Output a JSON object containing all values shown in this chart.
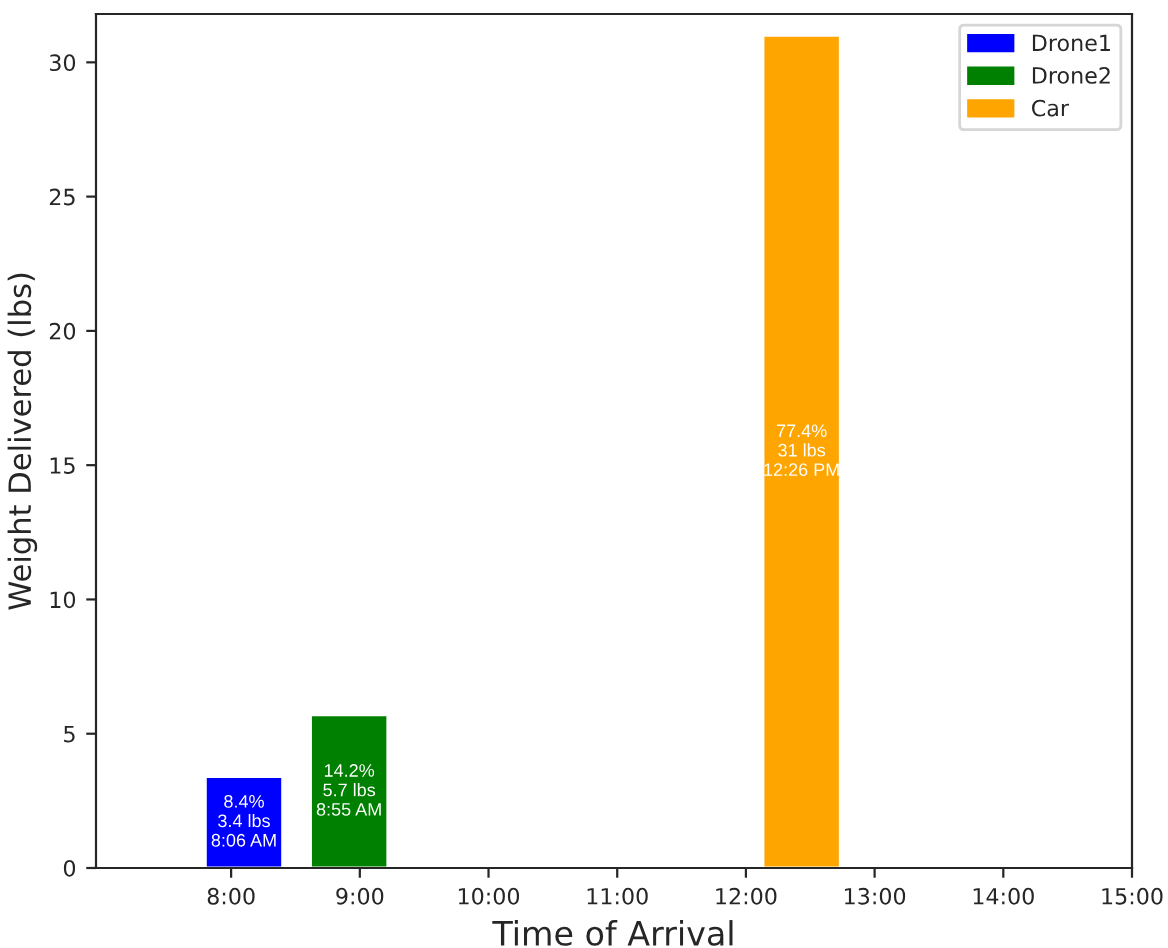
{
  "chart_data": {
    "type": "bar",
    "xlabel": "Time of Arrival",
    "ylabel": "Weight Delivered (lbs)",
    "series": [
      {
        "name": "Drone1",
        "color": "#0000ff",
        "x": [
          8.1
        ],
        "values": [
          3.4
        ],
        "value_labels": [
          "8.4%\n3.4 lbs\n8:06 AM"
        ]
      },
      {
        "name": "Drone2",
        "color": "#008000",
        "x": [
          8.917
        ],
        "values": [
          5.7
        ],
        "value_labels": [
          "14.2%\n5.7 lbs\n8:55 AM"
        ]
      },
      {
        "name": "Car",
        "color": "#ffa500",
        "x": [
          12.433
        ],
        "values": [
          31
        ],
        "value_labels": [
          "77.4%\n31 lbs\n12:26 PM"
        ]
      }
    ],
    "xlim": [
      6.95,
      15
    ],
    "xticks": [
      {
        "value": 8,
        "label": "8:00"
      },
      {
        "value": 9,
        "label": "9:00"
      },
      {
        "value": 10,
        "label": "10:00"
      },
      {
        "value": 11,
        "label": "11:00"
      },
      {
        "value": 12,
        "label": "12:00"
      },
      {
        "value": 13,
        "label": "13:00"
      },
      {
        "value": 14,
        "label": "14:00"
      },
      {
        "value": 15,
        "label": "15:00"
      }
    ],
    "ylim": [
      0,
      31.8
    ],
    "yticks": [
      0,
      5,
      10,
      15,
      20,
      25,
      30
    ],
    "legend": "top right",
    "grid": false
  }
}
